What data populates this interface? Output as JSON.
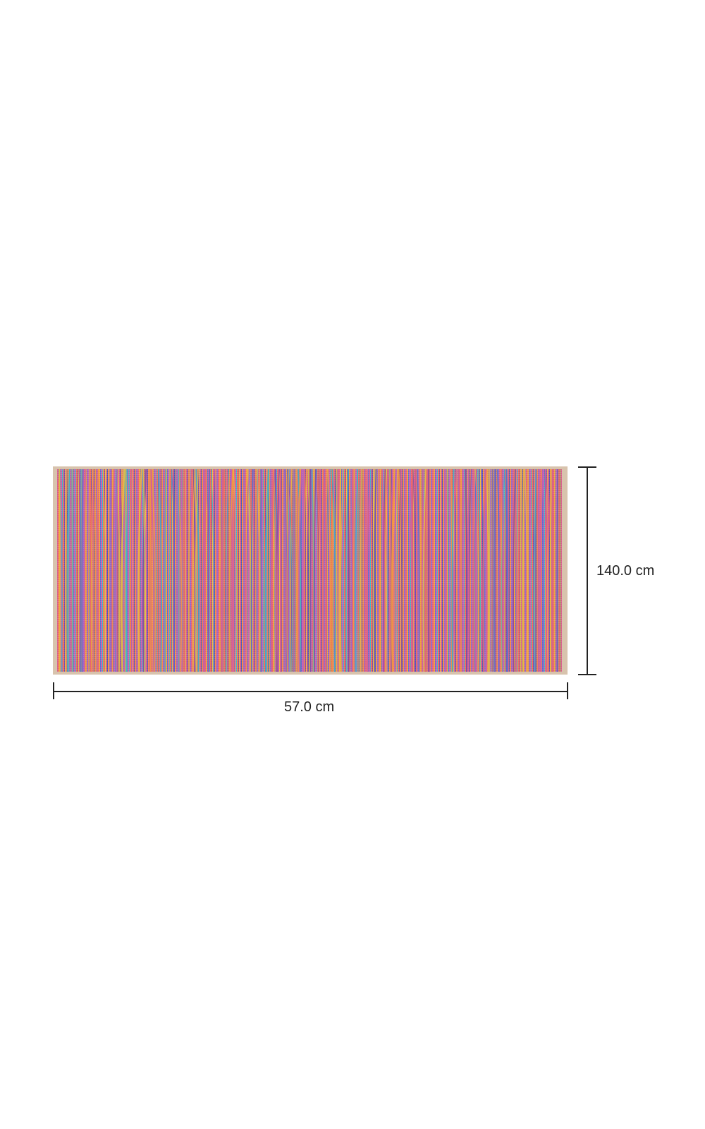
{
  "dimensions": {
    "height_label": "140.0 cm",
    "width_label": "57.0 cm"
  },
  "product": {
    "type": "rug",
    "colors": [
      "#e0607e",
      "#f39a3c",
      "#5a6fd0",
      "#c85fb0",
      "#3fb5c8",
      "#e8c040",
      "#7a4aa8"
    ],
    "border_color": "#d8c3ad"
  }
}
